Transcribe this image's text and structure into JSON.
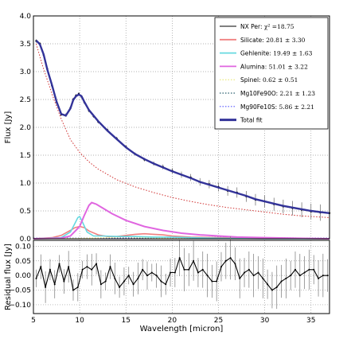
{
  "chart_data": [
    {
      "type": "line",
      "xlabel": "",
      "ylabel": "Flux [Jy]",
      "xlim": [
        5,
        37
      ],
      "ylim": [
        0,
        4.0
      ],
      "yticks": [
        "0.0",
        "0.5",
        "1.0",
        "1.5",
        "2.0",
        "2.5",
        "3.0",
        "3.5",
        "4.0"
      ],
      "grid": true,
      "legend_position": "top-right",
      "legend": [
        {
          "name": "NX Per: ",
          "math": "χ² =18.75",
          "color": "#000000",
          "style": "solid"
        },
        {
          "name": "Silicate: ",
          "math": "20.81 ± 3.30",
          "color": "#f08080",
          "style": "solid"
        },
        {
          "name": "Gehlenite: ",
          "math": "19.49 ± 1.63",
          "color": "#66d9e0",
          "style": "solid"
        },
        {
          "name": "Alumina: ",
          "math": "51.01 ± 3.22",
          "color": "#e066e0",
          "style": "solid"
        },
        {
          "name": "Spinel: ",
          "math": "0.62 ± 0.51",
          "color": "#e8e870",
          "style": "dotted"
        },
        {
          "name": "Mg10Fe90O: ",
          "math": "2.21 ± 1.23",
          "color": "#2a5f6f",
          "style": "dotted"
        },
        {
          "name": "Mg90Fe10S: ",
          "math": "5.86 ± 2.21",
          "color": "#5555ff",
          "style": "dotted"
        },
        {
          "name": "Total fit",
          "math": "",
          "color": "#333399",
          "style": "thick"
        }
      ],
      "series": [
        {
          "name": "NX Per",
          "color": "#000000",
          "x": [
            5.3,
            5.7,
            6.1,
            6.5,
            7.0,
            7.5,
            8.0,
            8.5,
            9.0,
            9.3,
            9.6,
            9.9,
            10.2,
            10.5,
            11.0,
            11.5,
            12.0,
            13.0,
            14.0,
            15.0,
            16.0,
            17.0,
            18.0,
            19.0,
            20.0,
            21.0,
            22.0,
            23.0,
            24.0,
            25.0,
            26.0,
            27.0,
            28.0,
            29.0,
            30.0,
            31.0,
            32.0,
            33.0,
            34.0,
            35.0,
            36.0,
            37.0
          ],
          "y": [
            3.55,
            3.5,
            3.3,
            3.05,
            2.75,
            2.45,
            2.23,
            2.22,
            2.35,
            2.5,
            2.57,
            2.6,
            2.55,
            2.45,
            2.3,
            2.2,
            2.1,
            1.95,
            1.8,
            1.65,
            1.52,
            1.42,
            1.35,
            1.29,
            1.22,
            1.15,
            1.1,
            1.02,
            0.98,
            0.93,
            0.86,
            0.83,
            0.76,
            0.7,
            0.67,
            0.62,
            0.58,
            0.55,
            0.52,
            0.49,
            0.47,
            0.46
          ]
        },
        {
          "name": "Total fit",
          "color": "#333399",
          "x": [
            5.3,
            5.7,
            6.1,
            6.5,
            7.0,
            7.5,
            8.0,
            8.5,
            9.0,
            9.3,
            9.6,
            9.9,
            10.2,
            10.5,
            11.0,
            11.5,
            12.0,
            13.0,
            14.0,
            15.0,
            16.0,
            17.0,
            18.0,
            19.0,
            20.0,
            21.0,
            22.0,
            23.0,
            24.0,
            25.0,
            26.0,
            27.0,
            28.0,
            29.0,
            30.0,
            31.0,
            32.0,
            33.0,
            34.0,
            35.0,
            36.0,
            37.0
          ],
          "y": [
            3.56,
            3.49,
            3.31,
            3.04,
            2.76,
            2.46,
            2.24,
            2.21,
            2.34,
            2.49,
            2.56,
            2.59,
            2.56,
            2.46,
            2.31,
            2.21,
            2.11,
            1.94,
            1.79,
            1.64,
            1.52,
            1.43,
            1.35,
            1.28,
            1.21,
            1.15,
            1.09,
            1.02,
            0.97,
            0.92,
            0.87,
            0.82,
            0.77,
            0.71,
            0.67,
            0.63,
            0.59,
            0.56,
            0.53,
            0.5,
            0.48,
            0.46
          ]
        },
        {
          "name": "Continuum",
          "color": "#d03030",
          "style": "dotted",
          "x": [
            5.3,
            6,
            7,
            8,
            9,
            10,
            11,
            12,
            14,
            16,
            18,
            20,
            22,
            24,
            26,
            28,
            30,
            32,
            34,
            36,
            37
          ],
          "y": [
            3.5,
            3.1,
            2.6,
            2.15,
            1.78,
            1.55,
            1.38,
            1.25,
            1.06,
            0.93,
            0.83,
            0.74,
            0.67,
            0.61,
            0.56,
            0.52,
            0.48,
            0.44,
            0.41,
            0.39,
            0.38
          ]
        },
        {
          "name": "Silicate",
          "color": "#f08080",
          "x": [
            5,
            7,
            8,
            9,
            9.5,
            10,
            10.5,
            11,
            12,
            13,
            14,
            15,
            16,
            17,
            18,
            19,
            20,
            22,
            25,
            30,
            37
          ],
          "y": [
            0.0,
            0.02,
            0.06,
            0.15,
            0.2,
            0.22,
            0.2,
            0.14,
            0.07,
            0.04,
            0.04,
            0.06,
            0.08,
            0.09,
            0.08,
            0.07,
            0.05,
            0.03,
            0.02,
            0.01,
            0.0
          ]
        },
        {
          "name": "Gehlenite",
          "color": "#66d9e0",
          "x": [
            5,
            8,
            9,
            9.5,
            9.8,
            10,
            10.3,
            10.8,
            11.5,
            12.5,
            14,
            16,
            18,
            20,
            22,
            25,
            30,
            37
          ],
          "y": [
            0.0,
            0.02,
            0.12,
            0.28,
            0.38,
            0.4,
            0.3,
            0.12,
            0.05,
            0.05,
            0.04,
            0.04,
            0.03,
            0.03,
            0.02,
            0.01,
            0.0,
            0.0
          ]
        },
        {
          "name": "Alumina",
          "color": "#e066e0",
          "x": [
            5,
            8,
            9,
            10,
            10.5,
            11,
            11.3,
            11.8,
            12.5,
            13.5,
            15,
            17,
            19,
            21,
            23,
            25,
            27,
            30,
            33,
            37
          ],
          "y": [
            0.0,
            0.01,
            0.05,
            0.22,
            0.42,
            0.6,
            0.65,
            0.62,
            0.55,
            0.45,
            0.33,
            0.22,
            0.15,
            0.1,
            0.07,
            0.05,
            0.03,
            0.02,
            0.01,
            0.0
          ]
        },
        {
          "name": "Spinel",
          "color": "#e8e870",
          "style": "dotted",
          "x": [
            5,
            10,
            13,
            15,
            17,
            20,
            25,
            37
          ],
          "y": [
            0.0,
            0.01,
            0.02,
            0.03,
            0.02,
            0.01,
            0.0,
            0.0
          ]
        },
        {
          "name": "Mg10Fe90O",
          "color": "#2a5f6f",
          "style": "dotted",
          "x": [
            5,
            37
          ],
          "y": [
            0.01,
            0.01
          ]
        },
        {
          "name": "Mg90Fe10S",
          "color": "#5555ff",
          "style": "dotted",
          "x": [
            5,
            20,
            25,
            30,
            37
          ],
          "y": [
            0.01,
            0.02,
            0.03,
            0.02,
            0.01
          ]
        }
      ]
    },
    {
      "type": "line",
      "xlabel": "Wavelength [micron]",
      "ylabel": "Residual flux [Jy]",
      "xlim": [
        5,
        37
      ],
      "ylim": [
        -0.13,
        0.12
      ],
      "xticks": [
        "5",
        "10",
        "15",
        "20",
        "25",
        "30",
        "35"
      ],
      "yticks": [
        "−0.10",
        "−0.05",
        "0.00",
        "0.05",
        "0.10"
      ],
      "grid": true,
      "series": [
        {
          "name": "Residual",
          "color": "#000000",
          "x": [
            5.3,
            5.8,
            6.3,
            6.8,
            7.3,
            7.8,
            8.3,
            8.8,
            9.3,
            9.8,
            10.3,
            10.8,
            11.3,
            11.8,
            12.3,
            12.8,
            13.3,
            13.8,
            14.3,
            14.8,
            15.3,
            15.8,
            16.3,
            16.8,
            17.3,
            17.8,
            18.3,
            18.8,
            19.3,
            19.8,
            20.3,
            20.8,
            21.3,
            21.8,
            22.3,
            22.8,
            23.3,
            23.8,
            24.3,
            24.8,
            25.3,
            25.8,
            26.3,
            26.8,
            27.3,
            27.8,
            28.3,
            28.8,
            29.3,
            29.8,
            30.3,
            30.8,
            31.3,
            31.8,
            32.3,
            32.8,
            33.3,
            33.8,
            34.3,
            34.8,
            35.3,
            35.8,
            36.3,
            36.8
          ],
          "y": [
            -0.01,
            0.03,
            -0.04,
            0.02,
            -0.03,
            0.04,
            -0.02,
            0.03,
            -0.05,
            -0.04,
            0.02,
            0.03,
            0.02,
            0.04,
            -0.03,
            -0.02,
            0.03,
            -0.01,
            -0.04,
            -0.02,
            0.0,
            -0.03,
            -0.01,
            0.02,
            0.0,
            0.01,
            0.0,
            -0.02,
            -0.03,
            0.01,
            0.01,
            0.06,
            0.02,
            0.02,
            0.05,
            0.01,
            0.02,
            0.0,
            -0.02,
            -0.02,
            0.03,
            0.05,
            0.06,
            0.04,
            -0.01,
            0.01,
            0.02,
            0.0,
            0.01,
            -0.01,
            -0.03,
            -0.05,
            -0.04,
            -0.02,
            -0.01,
            0.0,
            0.02,
            0.0,
            0.01,
            0.02,
            0.02,
            -0.01,
            0.0,
            0.0
          ]
        }
      ]
    }
  ]
}
